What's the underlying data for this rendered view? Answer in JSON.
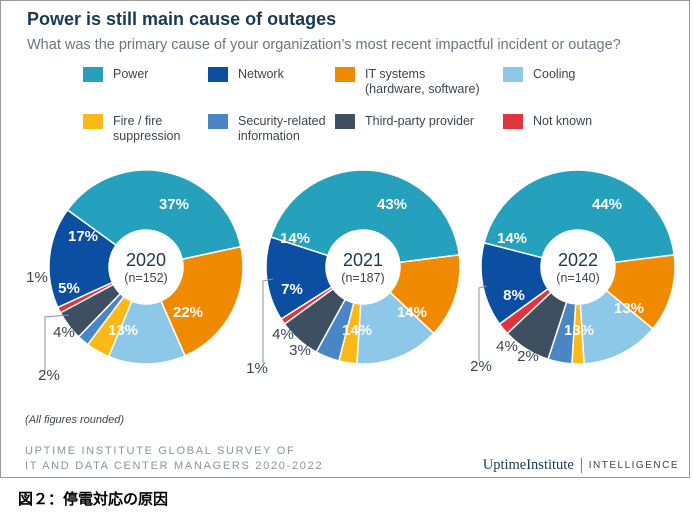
{
  "title": "Power is still main cause of outages",
  "subtitle": "What was the primary cause of your organization’s most recent impactful incident or outage?",
  "legend": [
    {
      "label": "Power",
      "color": "#25a0bd"
    },
    {
      "label": "Network",
      "color": "#0b4ea2"
    },
    {
      "label": "IT systems\n(hardware, software)",
      "color": "#f08a00"
    },
    {
      "label": "Cooling",
      "color": "#8dc8e8"
    },
    {
      "label": "Fire / fire\nsuppression",
      "color": "#fcb817"
    },
    {
      "label": "Security-related\ninformation",
      "color": "#4a86c5"
    },
    {
      "label": "Third-party provider",
      "color": "#3e4f61"
    },
    {
      "label": "Not known",
      "color": "#e0343e"
    }
  ],
  "chart_data": [
    {
      "type": "pie",
      "year": "2020",
      "n": "(n=152)",
      "categories": [
        "Power",
        "IT systems (hardware, software)",
        "Cooling",
        "Fire / fire suppression",
        "Security-related information",
        "Third-party provider",
        "Not known",
        "Network"
      ],
      "values": [
        37,
        22,
        13,
        4,
        2,
        5,
        1,
        17
      ],
      "labels": [
        "37%",
        "22%",
        "13%",
        "4%",
        "2%",
        "5%",
        "1%",
        "17%"
      ]
    },
    {
      "type": "pie",
      "year": "2021",
      "n": "(n=187)",
      "categories": [
        "Power",
        "IT systems (hardware, software)",
        "Cooling",
        "Fire / fire suppression",
        "Security-related information",
        "Third-party provider",
        "Not known",
        "Network"
      ],
      "values": [
        43,
        14,
        14,
        3,
        4,
        7,
        1,
        14
      ],
      "labels": [
        "43%",
        "14%",
        "14%",
        "3%",
        "4%",
        "7%",
        "1%",
        "14%"
      ]
    },
    {
      "type": "pie",
      "year": "2022",
      "n": "(n=140)",
      "categories": [
        "Power",
        "IT systems (hardware, software)",
        "Cooling",
        "Fire / fire suppression",
        "Security-related information",
        "Third-party provider",
        "Not known",
        "Network"
      ],
      "values": [
        44,
        13,
        13,
        2,
        4,
        8,
        2,
        14
      ],
      "labels": [
        "44%",
        "13%",
        "13%",
        "2%",
        "4%",
        "8%",
        "2%",
        "14%"
      ]
    }
  ],
  "note": "(All figures rounded)",
  "source": "UPTIME INSTITUTE GLOBAL SURVEY OF\nIT AND DATA CENTER MANAGERS 2020-2022",
  "brand": {
    "name": "UptimeInstitute",
    "tag": "INTELLIGENCE"
  },
  "caption": "図２：停電対応の原因"
}
